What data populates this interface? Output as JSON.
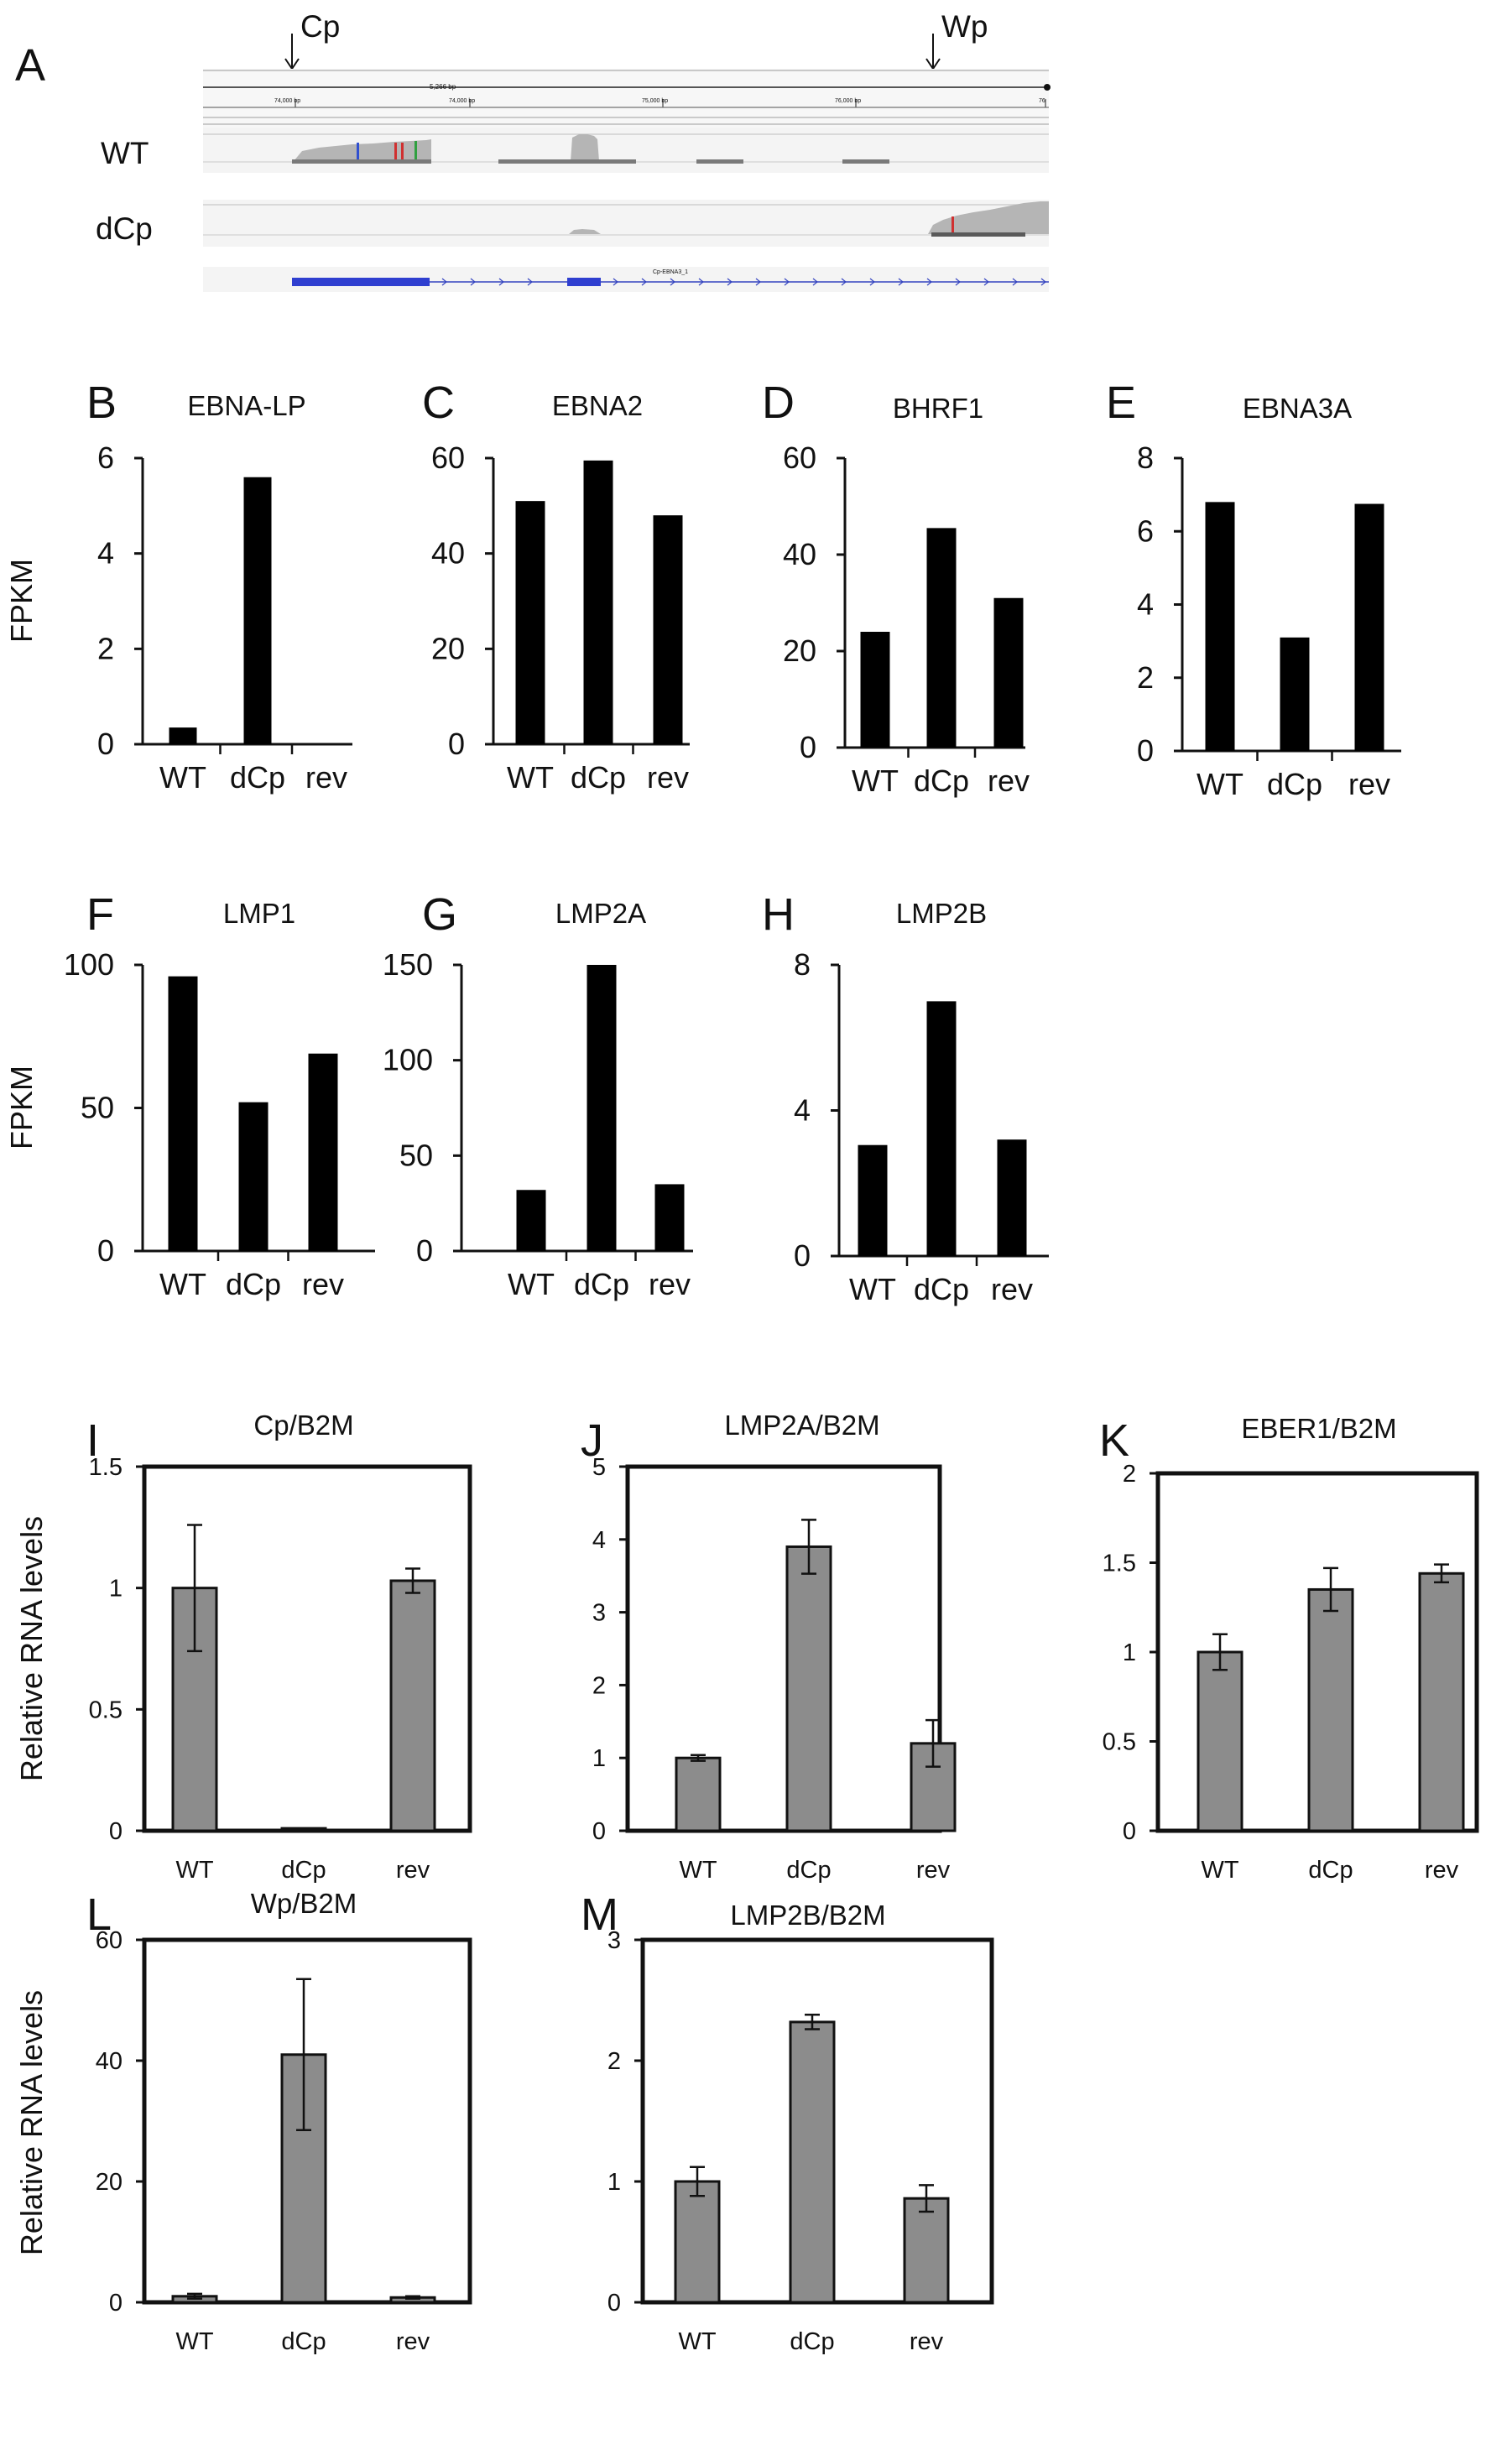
{
  "figure": {
    "panel_a": {
      "letter": "A",
      "tracks": [
        "WT",
        "dCp"
      ],
      "promoters": [
        "Cp",
        "Wp"
      ],
      "scale_text": "5,266 bp",
      "ruler_ticks": [
        "74,000 bp",
        "74,000 bp",
        "75,000 bp",
        "76,000 bp",
        "76"
      ],
      "gene_label": "Cp-EBNA3_1"
    }
  },
  "chart_data": [
    {
      "id": "B",
      "type": "bar",
      "title": "EBNA-LP",
      "ylabel": "FPKM",
      "categories": [
        "WT",
        "dCp",
        "rev"
      ],
      "values": [
        0.35,
        5.6,
        0
      ],
      "ylim": [
        0,
        6
      ],
      "yticks": [
        0,
        2,
        4,
        6
      ],
      "ytick_labels": [
        "0",
        "2",
        "4",
        "6"
      ]
    },
    {
      "id": "C",
      "type": "bar",
      "title": "EBNA2",
      "ylabel": "",
      "categories": [
        "WT",
        "dCp",
        "rev"
      ],
      "values": [
        51,
        59.5,
        48
      ],
      "ylim": [
        0,
        60
      ],
      "yticks": [
        0,
        20,
        40,
        60
      ],
      "ytick_labels": [
        "0",
        "20",
        "40",
        "60"
      ]
    },
    {
      "id": "D",
      "type": "bar",
      "title": "BHRF1",
      "ylabel": "",
      "categories": [
        "WT",
        "dCp",
        "rev"
      ],
      "values": [
        24,
        45.5,
        31
      ],
      "ylim": [
        0,
        60
      ],
      "yticks": [
        0,
        20,
        40,
        60
      ],
      "ytick_labels": [
        "0",
        "20",
        "40",
        "60"
      ]
    },
    {
      "id": "E",
      "type": "bar",
      "title": "EBNA3A",
      "ylabel": "",
      "categories": [
        "WT",
        "dCp",
        "rev"
      ],
      "values": [
        6.8,
        3.1,
        6.75
      ],
      "ylim": [
        0,
        8
      ],
      "yticks": [
        0,
        2,
        4,
        6,
        8
      ],
      "ytick_labels": [
        "0",
        "2",
        "4",
        "6",
        "8"
      ]
    },
    {
      "id": "F",
      "type": "bar",
      "title": "LMP1",
      "ylabel": "FPKM",
      "categories": [
        "WT",
        "dCp",
        "rev"
      ],
      "values": [
        96,
        52,
        69
      ],
      "ylim": [
        0,
        100
      ],
      "yticks": [
        0,
        50,
        100
      ],
      "ytick_labels": [
        "0",
        "50",
        "100"
      ]
    },
    {
      "id": "G",
      "type": "bar",
      "title": "LMP2A",
      "ylabel": "",
      "categories": [
        "WT",
        "dCp",
        "rev"
      ],
      "values": [
        32,
        150,
        35
      ],
      "ylim": [
        0,
        150
      ],
      "yticks": [
        0,
        50,
        100,
        150
      ],
      "ytick_labels": [
        "0",
        "50",
        "100",
        "150"
      ]
    },
    {
      "id": "H",
      "type": "bar",
      "title": "LMP2B",
      "ylabel": "",
      "categories": [
        "WT",
        "dCp",
        "rev"
      ],
      "values": [
        3.05,
        7.0,
        3.2
      ],
      "ylim": [
        0,
        8
      ],
      "yticks": [
        0,
        4,
        8
      ],
      "ytick_labels": [
        "0",
        "4",
        "8"
      ]
    },
    {
      "id": "I",
      "type": "bar",
      "title": "Cp/B2M",
      "ylabel": "Relative RNA levels",
      "categories": [
        "WT",
        "dCp",
        "rev"
      ],
      "values": [
        1.0,
        0.01,
        1.03
      ],
      "errors": [
        0.26,
        0,
        0.05
      ],
      "ylim": [
        0,
        1.5
      ],
      "yticks": [
        0,
        0.5,
        1,
        1.5
      ],
      "ytick_labels": [
        "0",
        "0.5",
        "1",
        "1.5"
      ]
    },
    {
      "id": "J",
      "type": "bar",
      "title": "LMP2A/B2M",
      "ylabel": "",
      "categories": [
        "WT",
        "dCp",
        "rev"
      ],
      "values": [
        1.0,
        3.9,
        1.2
      ],
      "errors": [
        0.04,
        0.37,
        0.32
      ],
      "ylim": [
        0,
        5
      ],
      "yticks": [
        0,
        1,
        2,
        3,
        4,
        5
      ],
      "ytick_labels": [
        "0",
        "1",
        "2",
        "3",
        "4",
        "5"
      ]
    },
    {
      "id": "K",
      "type": "bar",
      "title": "EBER1/B2M",
      "ylabel": "",
      "categories": [
        "WT",
        "dCp",
        "rev"
      ],
      "values": [
        1.0,
        1.35,
        1.44
      ],
      "errors": [
        0.1,
        0.12,
        0.05
      ],
      "ylim": [
        0,
        2
      ],
      "yticks": [
        0,
        0.5,
        1,
        1.5,
        2
      ],
      "ytick_labels": [
        "0",
        "0.5",
        "1",
        "1.5",
        "2"
      ]
    },
    {
      "id": "L",
      "type": "bar",
      "title": "Wp/B2M",
      "ylabel": "Relative RNA levels",
      "categories": [
        "WT",
        "dCp",
        "rev"
      ],
      "values": [
        1.0,
        41,
        0.8
      ],
      "errors": [
        0.4,
        12.5,
        0.2
      ],
      "ylim": [
        0,
        60
      ],
      "yticks": [
        0,
        20,
        40,
        60
      ],
      "ytick_labels": [
        "0",
        "20",
        "40",
        "60"
      ]
    },
    {
      "id": "M",
      "type": "bar",
      "title": "LMP2B/B2M",
      "ylabel": "",
      "categories": [
        "WT",
        "dCp",
        "rev"
      ],
      "values": [
        1.0,
        2.32,
        0.86
      ],
      "errors": [
        0.12,
        0.06,
        0.11
      ],
      "ylim": [
        0,
        3
      ],
      "yticks": [
        0,
        1,
        2,
        3
      ],
      "ytick_labels": [
        "0",
        "1",
        "2",
        "3"
      ]
    }
  ]
}
